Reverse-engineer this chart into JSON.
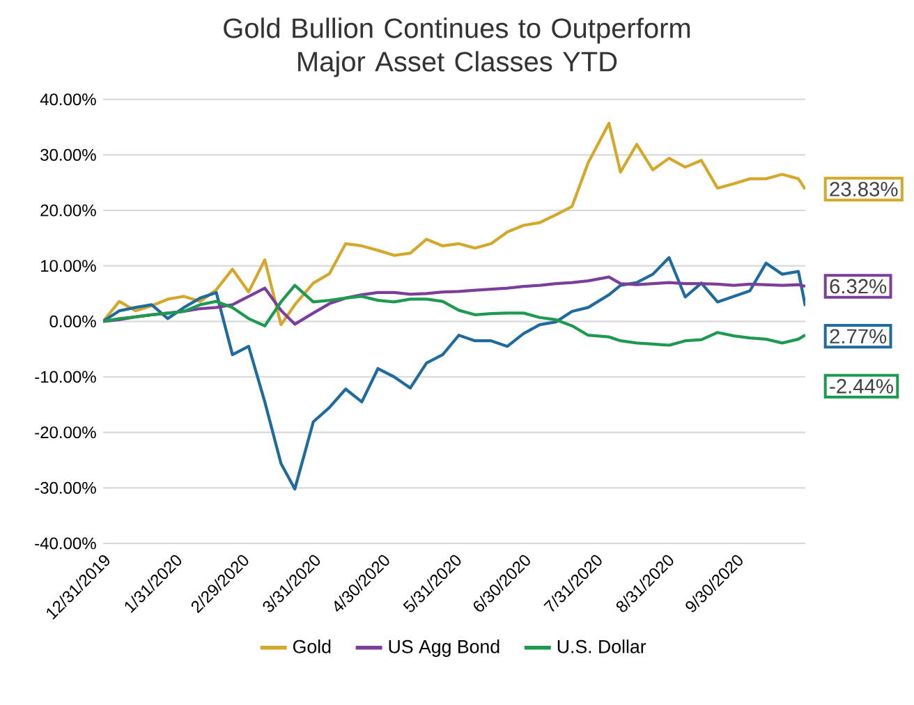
{
  "chart_data": {
    "type": "line",
    "title": "Gold Bullion Continues to Outperform Major Asset Classes YTD",
    "x": [
      "2019-12-31",
      "2020-01-07",
      "2020-01-14",
      "2020-01-21",
      "2020-01-28",
      "2020-02-04",
      "2020-02-11",
      "2020-02-18",
      "2020-02-25",
      "2020-03-03",
      "2020-03-10",
      "2020-03-17",
      "2020-03-23",
      "2020-03-31",
      "2020-04-07",
      "2020-04-14",
      "2020-04-21",
      "2020-04-28",
      "2020-05-05",
      "2020-05-12",
      "2020-05-19",
      "2020-05-26",
      "2020-06-02",
      "2020-06-09",
      "2020-06-16",
      "2020-06-23",
      "2020-06-30",
      "2020-07-07",
      "2020-07-14",
      "2020-07-21",
      "2020-07-28",
      "2020-08-06",
      "2020-08-11",
      "2020-08-18",
      "2020-08-25",
      "2020-09-01",
      "2020-09-08",
      "2020-09-15",
      "2020-09-22",
      "2020-09-29",
      "2020-10-06",
      "2020-10-13",
      "2020-10-20",
      "2020-10-27",
      "2020-10-30"
    ],
    "series": [
      {
        "name": "Gold",
        "color": "#d4a82a",
        "values": [
          0,
          3.6,
          1.9,
          2.8,
          4.0,
          4.5,
          3.6,
          5.7,
          9.4,
          5.3,
          11.1,
          -0.6,
          3.0,
          6.9,
          8.6,
          14,
          13.6,
          12.8,
          11.9,
          12.3,
          14.8,
          13.6,
          14,
          13.2,
          14,
          16.1,
          17.3,
          17.8,
          19.2,
          20.7,
          28.6,
          35.7,
          26.9,
          31.9,
          27.3,
          29.4,
          27.8,
          29,
          24,
          24.8,
          25.7,
          25.7,
          26.5,
          25.7,
          23.83
        ]
      },
      {
        "color": "#1f6b9e",
        "values": [
          0,
          1.9,
          2.5,
          3.0,
          0.5,
          2.5,
          4.2,
          5.2,
          -6.0,
          -4.5,
          -14.5,
          -25.6,
          -30.2,
          -18.1,
          -15.5,
          -12.2,
          -14.5,
          -8.5,
          -10,
          -12,
          -7.5,
          -6.0,
          -2.5,
          -3.5,
          -3.5,
          -4.5,
          -2.2,
          -0.6,
          -0.1,
          1.8,
          2.5,
          4.8,
          6.5,
          7.0,
          8.5,
          11.5,
          4.4,
          6.9,
          3.5,
          4.5,
          5.5,
          10.5,
          8.5,
          9.0,
          2.77
        ]
      },
      {
        "name": "US Agg Bond",
        "color": "#7b3f9b",
        "values": [
          0,
          0.3,
          0.8,
          1.2,
          1.5,
          1.8,
          2.3,
          2.5,
          3.0,
          4.5,
          6.0,
          2.0,
          -0.5,
          1.5,
          3.2,
          4.2,
          4.8,
          5.2,
          5.2,
          4.9,
          5.0,
          5.3,
          5.4,
          5.6,
          5.8,
          6.0,
          6.3,
          6.5,
          6.8,
          7.0,
          7.3,
          8.0,
          6.8,
          6.6,
          6.8,
          7.0,
          6.8,
          6.8,
          6.7,
          6.5,
          6.7,
          6.6,
          6.5,
          6.6,
          6.32
        ]
      },
      {
        "name": "U.S. Dollar",
        "color": "#1e9a50",
        "values": [
          0,
          0.5,
          0.8,
          1.2,
          1.5,
          1.8,
          3.0,
          3.6,
          2.5,
          0.5,
          -0.8,
          3.5,
          6.5,
          3.5,
          3.8,
          4.2,
          4.5,
          3.8,
          3.5,
          4.0,
          4.0,
          3.6,
          2.0,
          1.2,
          1.4,
          1.5,
          1.5,
          0.7,
          0.3,
          -0.8,
          -2.5,
          -2.8,
          -3.5,
          -3.9,
          -4.1,
          -4.3,
          -3.5,
          -3.3,
          -2.0,
          -2.6,
          -3.0,
          -3.2,
          -3.9,
          -3.2,
          -2.44
        ]
      }
    ],
    "xlim": [
      "2019-12-31",
      "2020-10-30"
    ],
    "xticks": [
      {
        "value": "2019-12-31",
        "label": "12/31/2019"
      },
      {
        "value": "2020-01-31",
        "label": "1/31/2020"
      },
      {
        "value": "2020-02-29",
        "label": "2/29/2020"
      },
      {
        "value": "2020-03-31",
        "label": "3/31/2020"
      },
      {
        "value": "2020-04-30",
        "label": "4/30/2020"
      },
      {
        "value": "2020-05-31",
        "label": "5/31/2020"
      },
      {
        "value": "2020-06-30",
        "label": "6/30/2020"
      },
      {
        "value": "2020-07-31",
        "label": "7/31/2020"
      },
      {
        "value": "2020-08-31",
        "label": "8/31/2020"
      },
      {
        "value": "2020-09-30",
        "label": "9/30/2020"
      }
    ],
    "ylim": [
      -40,
      40
    ],
    "yticks": [
      {
        "value": -40,
        "label": "-40.00%"
      },
      {
        "value": -30,
        "label": "-30.00%"
      },
      {
        "value": -20,
        "label": "-20.00%"
      },
      {
        "value": -10,
        "label": "-10.00%"
      },
      {
        "value": 0,
        "label": "0.00%"
      },
      {
        "value": 10,
        "label": "10.00%"
      },
      {
        "value": 20,
        "label": "20.00%"
      },
      {
        "value": 30,
        "label": "30.00%"
      },
      {
        "value": 40,
        "label": "40.00%"
      }
    ],
    "annotations": [
      {
        "text": "23.83%",
        "x": "2020-10-30",
        "y": 23.83
      },
      {
        "text": "6.32%",
        "x": "2020-10-30",
        "y": 6.32
      },
      {
        "text": "2.77%",
        "x": "2020-10-30",
        "y": 2.77
      },
      {
        "text": "-2.44%",
        "x": "2020-10-30",
        "y": -2.44
      }
    ],
    "grid": "y",
    "legend": "bottom",
    "line_style": "solid",
    "marker": "none"
  }
}
